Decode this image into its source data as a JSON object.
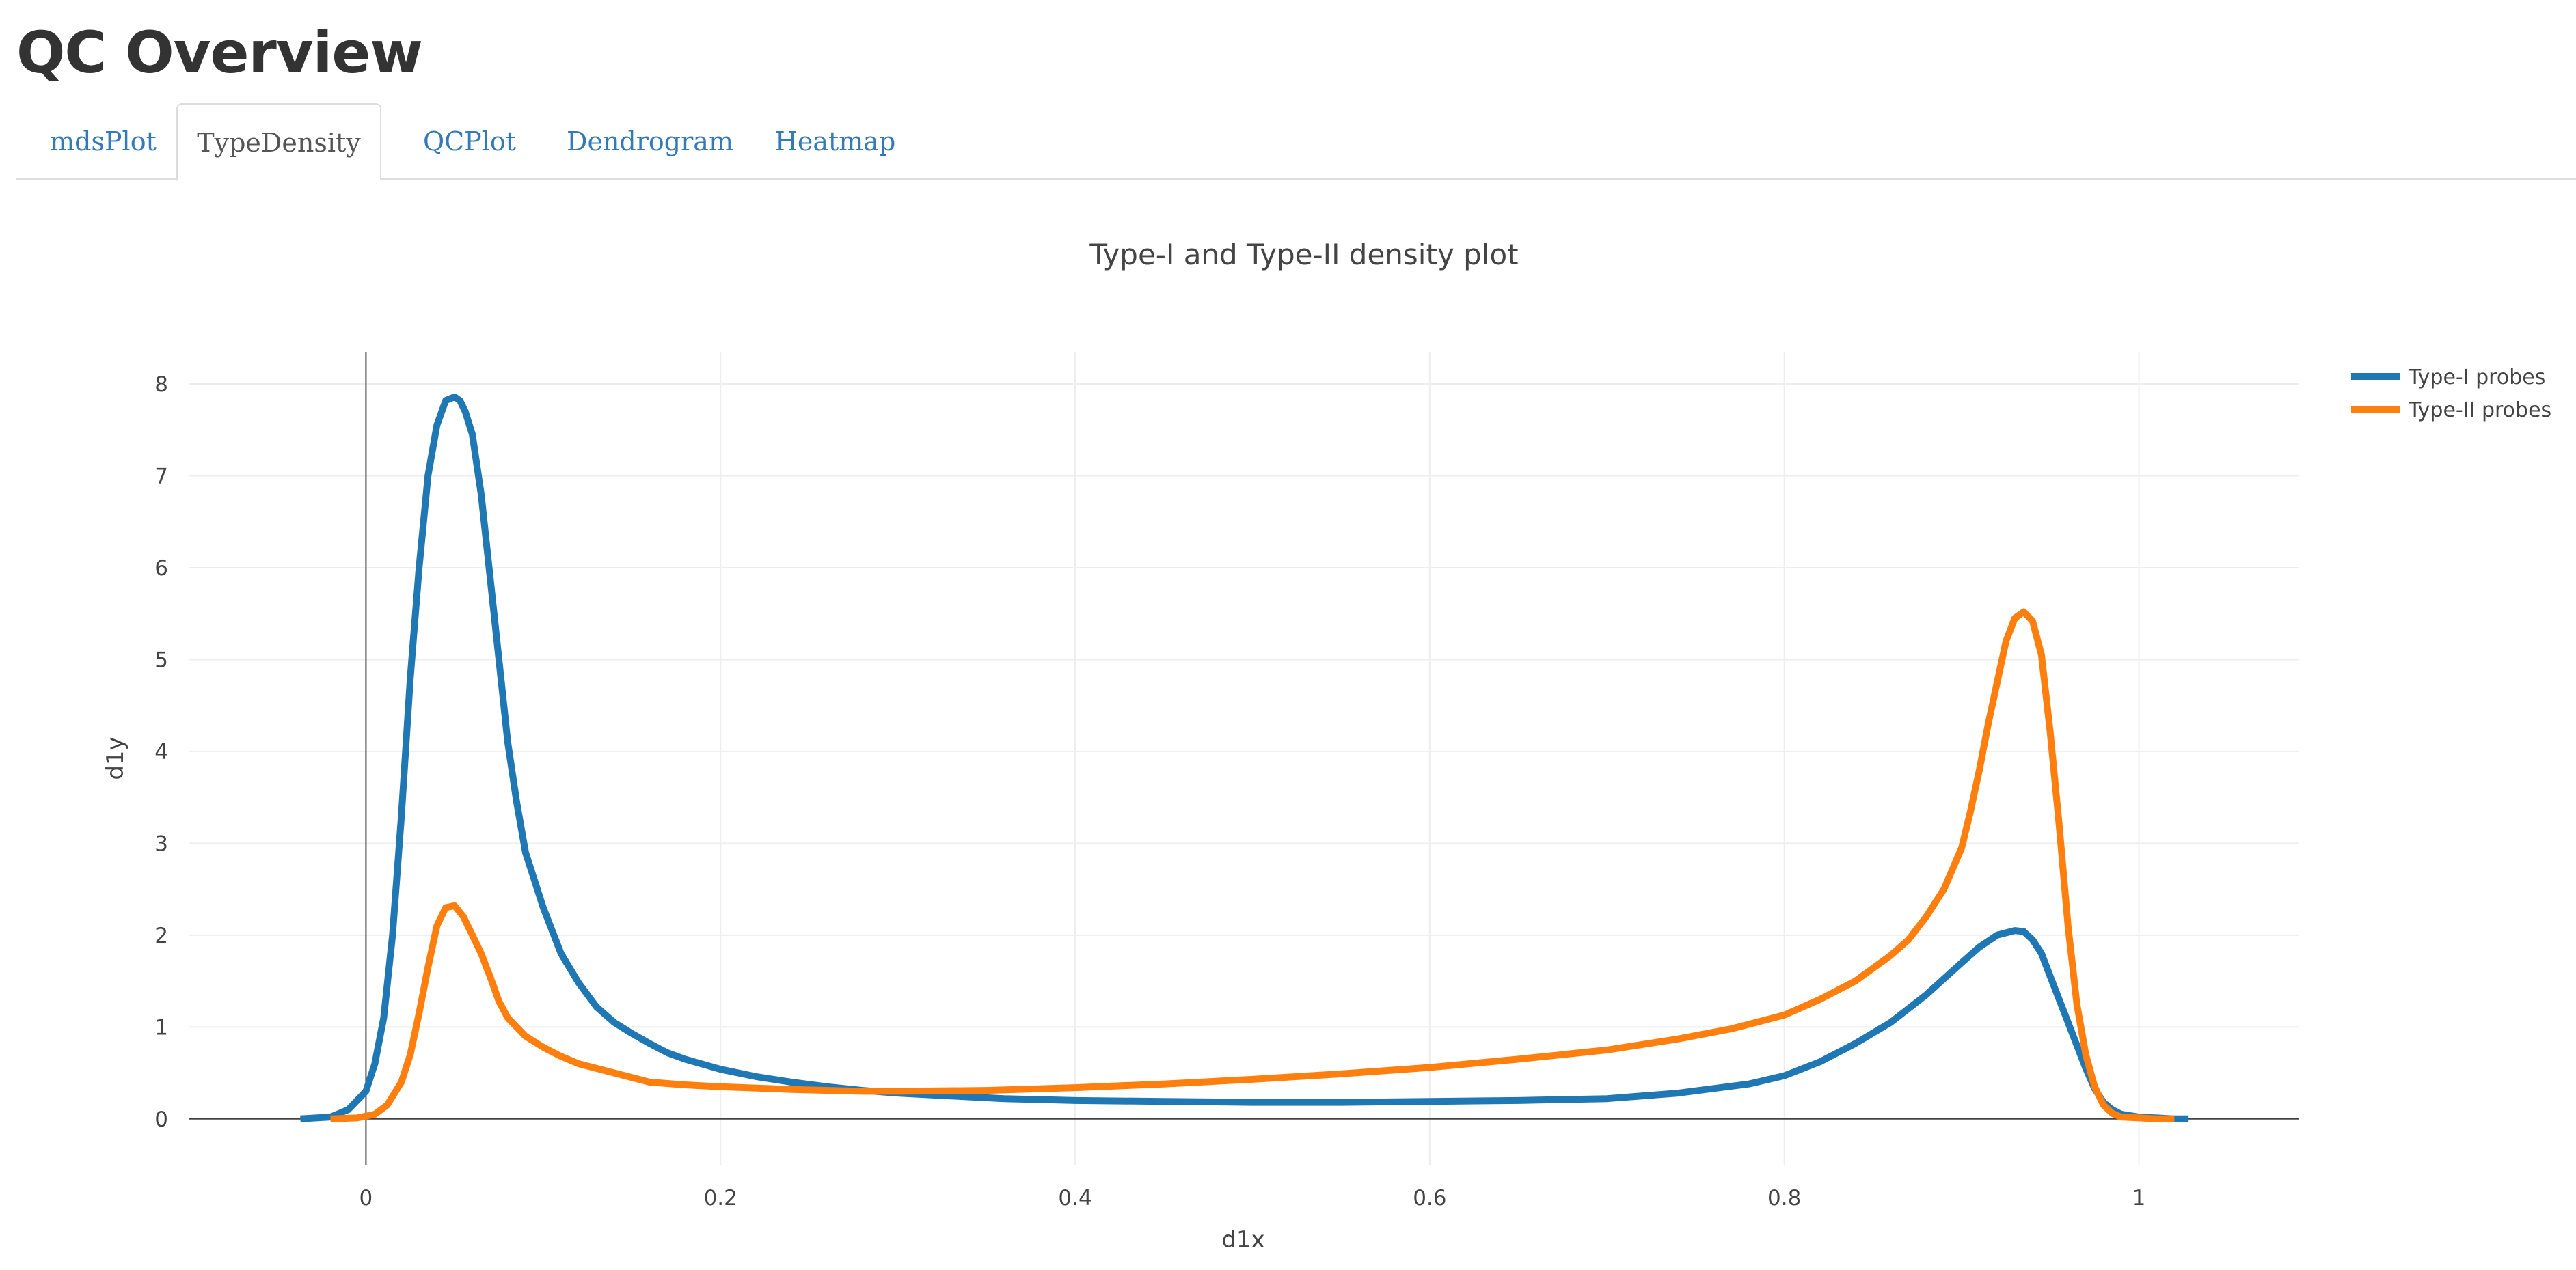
{
  "page": {
    "title": "QC Overview"
  },
  "tabs": [
    {
      "label": "mdsPlot",
      "active": false
    },
    {
      "label": "TypeDensity",
      "active": true
    },
    {
      "label": "QCPlot",
      "active": false
    },
    {
      "label": "Dendrogram",
      "active": false
    },
    {
      "label": "Heatmap",
      "active": false
    }
  ],
  "colors": {
    "link": "#337ab7",
    "active_tab_text": "#555555",
    "axis_text": "#444444",
    "grid": "#eeeeee",
    "zero_line": "#444444"
  },
  "chart_data": {
    "type": "line",
    "title": "Type-I and Type-II density plot",
    "xlabel": "d1x",
    "ylabel": "d1y",
    "xlim": [
      -0.1,
      1.09
    ],
    "ylim": [
      -0.5,
      8.35
    ],
    "xticks": [
      0,
      0.2,
      0.4,
      0.6,
      0.8,
      1
    ],
    "xtick_labels": [
      "0",
      "0.2",
      "0.4",
      "0.6",
      "0.8",
      "1"
    ],
    "yticks": [
      0,
      1,
      2,
      3,
      4,
      5,
      6,
      7,
      8
    ],
    "ytick_labels": [
      "0",
      "1",
      "2",
      "3",
      "4",
      "5",
      "6",
      "7",
      "8"
    ],
    "grid": true,
    "legend_position": "top-right",
    "series": [
      {
        "name": "Type-I probes",
        "color": "#1f77b4",
        "x": [
          -0.037,
          -0.02,
          -0.01,
          0.0,
          0.005,
          0.01,
          0.015,
          0.02,
          0.025,
          0.03,
          0.035,
          0.04,
          0.045,
          0.05,
          0.053,
          0.056,
          0.06,
          0.065,
          0.07,
          0.075,
          0.08,
          0.085,
          0.09,
          0.1,
          0.11,
          0.12,
          0.13,
          0.14,
          0.15,
          0.16,
          0.17,
          0.18,
          0.2,
          0.22,
          0.24,
          0.26,
          0.28,
          0.3,
          0.33,
          0.36,
          0.4,
          0.45,
          0.5,
          0.55,
          0.6,
          0.65,
          0.7,
          0.74,
          0.78,
          0.8,
          0.82,
          0.84,
          0.86,
          0.88,
          0.9,
          0.91,
          0.92,
          0.93,
          0.935,
          0.94,
          0.945,
          0.95,
          0.96,
          0.97,
          0.975,
          0.98,
          0.985,
          0.99,
          1.0,
          1.01,
          1.02,
          1.028
        ],
        "y": [
          0.0,
          0.02,
          0.1,
          0.3,
          0.6,
          1.1,
          2.0,
          3.3,
          4.8,
          6.0,
          7.0,
          7.55,
          7.82,
          7.86,
          7.82,
          7.7,
          7.45,
          6.8,
          5.9,
          5.0,
          4.1,
          3.45,
          2.9,
          2.3,
          1.8,
          1.48,
          1.22,
          1.05,
          0.93,
          0.82,
          0.72,
          0.65,
          0.54,
          0.46,
          0.4,
          0.35,
          0.31,
          0.28,
          0.25,
          0.22,
          0.2,
          0.19,
          0.18,
          0.18,
          0.19,
          0.2,
          0.22,
          0.28,
          0.38,
          0.47,
          0.62,
          0.82,
          1.05,
          1.35,
          1.7,
          1.87,
          2.0,
          2.05,
          2.04,
          1.95,
          1.8,
          1.55,
          1.05,
          0.55,
          0.33,
          0.18,
          0.1,
          0.05,
          0.02,
          0.01,
          0.0,
          0.0
        ]
      },
      {
        "name": "Type-II probes",
        "color": "#ff7f0e",
        "x": [
          -0.02,
          -0.005,
          0.005,
          0.012,
          0.02,
          0.025,
          0.03,
          0.035,
          0.04,
          0.045,
          0.05,
          0.055,
          0.06,
          0.065,
          0.07,
          0.075,
          0.08,
          0.09,
          0.1,
          0.11,
          0.12,
          0.14,
          0.16,
          0.18,
          0.2,
          0.24,
          0.28,
          0.3,
          0.35,
          0.4,
          0.45,
          0.5,
          0.55,
          0.6,
          0.65,
          0.7,
          0.74,
          0.77,
          0.8,
          0.82,
          0.84,
          0.86,
          0.87,
          0.88,
          0.89,
          0.9,
          0.905,
          0.91,
          0.915,
          0.92,
          0.925,
          0.93,
          0.935,
          0.94,
          0.945,
          0.95,
          0.955,
          0.96,
          0.965,
          0.97,
          0.975,
          0.98,
          0.985,
          0.99,
          1.0,
          1.01,
          1.02
        ],
        "y": [
          0.0,
          0.01,
          0.05,
          0.15,
          0.4,
          0.7,
          1.15,
          1.65,
          2.1,
          2.3,
          2.32,
          2.2,
          2.0,
          1.8,
          1.55,
          1.28,
          1.1,
          0.9,
          0.78,
          0.68,
          0.6,
          0.5,
          0.4,
          0.37,
          0.35,
          0.32,
          0.3,
          0.3,
          0.31,
          0.34,
          0.38,
          0.43,
          0.49,
          0.56,
          0.65,
          0.75,
          0.87,
          0.98,
          1.13,
          1.3,
          1.5,
          1.78,
          1.95,
          2.2,
          2.5,
          2.95,
          3.35,
          3.8,
          4.3,
          4.75,
          5.2,
          5.45,
          5.52,
          5.42,
          5.05,
          4.2,
          3.2,
          2.1,
          1.25,
          0.7,
          0.35,
          0.15,
          0.06,
          0.02,
          0.01,
          0.0,
          0.0
        ]
      }
    ]
  }
}
